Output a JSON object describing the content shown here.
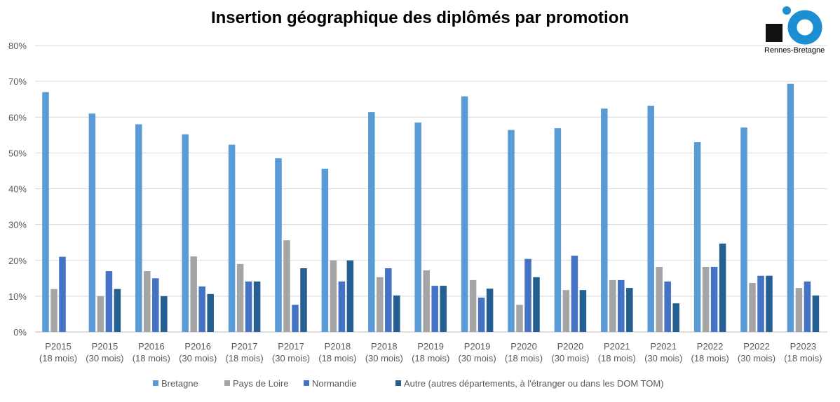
{
  "logo_text": "Rennes-Bretagne",
  "chart_data": {
    "type": "bar",
    "title": "Insertion géographique des diplômés par promotion",
    "categories": [
      [
        "P2015",
        "(18 mois)"
      ],
      [
        "P2015",
        "(30 mois)"
      ],
      [
        "P2016",
        "(18 mois)"
      ],
      [
        "P2016",
        "(30 mois)"
      ],
      [
        "P2017",
        "(18 mois)"
      ],
      [
        "P2017",
        "(30 mois)"
      ],
      [
        "P2018",
        "(18 mois)"
      ],
      [
        "P2018",
        "(30 mois)"
      ],
      [
        "P2019",
        "(18 mois)"
      ],
      [
        "P2019",
        "(30 mois)"
      ],
      [
        "P2020",
        "(18 mois)"
      ],
      [
        "P2020",
        "(30 mois)"
      ],
      [
        "P2021",
        "(18 mois)"
      ],
      [
        "P2021",
        "(30 mois)"
      ],
      [
        "P2022",
        "(18 mois)"
      ],
      [
        "P2022",
        "(30 mois)"
      ],
      [
        "P2023",
        "(18 mois)"
      ]
    ],
    "series": [
      {
        "name": "Bretagne",
        "color": "#5b9bd5",
        "values": [
          67,
          61,
          58,
          55.2,
          52.3,
          48.5,
          45.6,
          61.4,
          58.5,
          65.8,
          56.4,
          56.9,
          62.4,
          63.2,
          53,
          57.1,
          69.3
        ]
      },
      {
        "name": "Pays de Loire",
        "color": "#a5a5a5",
        "values": [
          12,
          10,
          17,
          21.1,
          19,
          25.6,
          20,
          15.3,
          17.2,
          14.5,
          7.6,
          11.7,
          14.5,
          18.2,
          18.2,
          13.7,
          12.3
        ]
      },
      {
        "name": "Normandie",
        "color": "#4472c4",
        "values": [
          21,
          17,
          15,
          12.7,
          14.1,
          7.6,
          14.1,
          17.8,
          12.9,
          9.6,
          20.4,
          21.3,
          14.5,
          14.1,
          18.2,
          15.7,
          14.1
        ]
      },
      {
        "name": "Autre (autres départements, à l'étranger ou dans les DOM TOM)",
        "color": "#255e91",
        "values": [
          0,
          12,
          10,
          10.6,
          14.1,
          17.8,
          20,
          10.2,
          12.9,
          12.1,
          15.3,
          11.7,
          12.3,
          8,
          24.7,
          15.7,
          10.2
        ]
      }
    ],
    "yticks": [
      "0%",
      "10%",
      "20%",
      "30%",
      "40%",
      "50%",
      "60%",
      "70%",
      "80%"
    ],
    "ylim": [
      0,
      80
    ],
    "grid": true,
    "legend": "bottom"
  }
}
